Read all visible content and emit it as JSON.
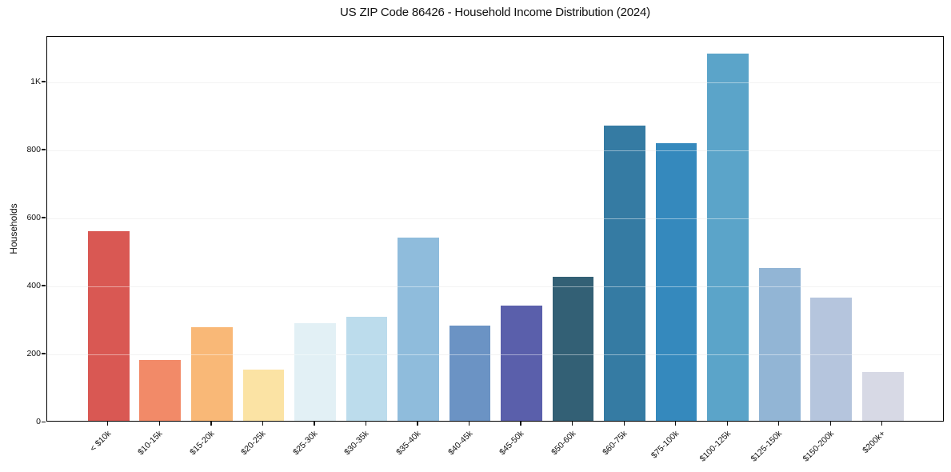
{
  "chart_data": {
    "type": "bar",
    "title": "US ZIP Code 86426 - Household Income Distribution (2024)",
    "xlabel": "",
    "ylabel": "Households",
    "categories": [
      "< $10k",
      "$10-15k",
      "$15-20k",
      "$20-25k",
      "$25-30k",
      "$30-35k",
      "$35-40k",
      "$40-45k",
      "$45-50k",
      "$50-60k",
      "$60-75k",
      "$75-100k",
      "$100-125k",
      "$125-150k",
      "$150-200k",
      "$200k+"
    ],
    "values": [
      558,
      178,
      275,
      150,
      288,
      306,
      538,
      279,
      340,
      424,
      868,
      817,
      1079,
      449,
      362,
      143
    ],
    "bar_colors": [
      "#d95853",
      "#f28a68",
      "#f9b877",
      "#fbe3a4",
      "#e2f0f5",
      "#bcdcec",
      "#8fbcdc",
      "#6b93c4",
      "#5a5fab",
      "#336075",
      "#357ba3",
      "#3589bd",
      "#5ba4c9",
      "#92b5d5",
      "#b5c5dd",
      "#d7d9e5"
    ],
    "ylim": [
      0,
      1134
    ],
    "yticks": [
      {
        "value": 0,
        "label": "0"
      },
      {
        "value": 200,
        "label": "200"
      },
      {
        "value": 400,
        "label": "400"
      },
      {
        "value": 600,
        "label": "600"
      },
      {
        "value": 800,
        "label": "800"
      },
      {
        "value": 1000,
        "label": "1K"
      }
    ],
    "xtick_rotation": 45,
    "grid": "horizontal",
    "grid_color": "#e8e8e8",
    "axis_color": "#000000",
    "background": "#ffffff",
    "legend": null
  }
}
